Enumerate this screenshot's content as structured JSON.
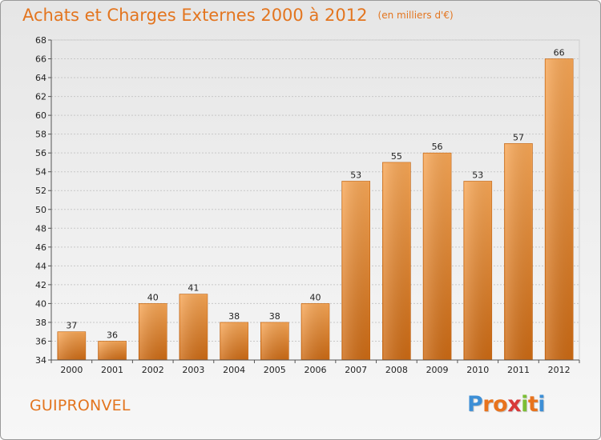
{
  "chart_data": {
    "type": "bar",
    "title": "Achats et Charges Externes 2000 à 2012",
    "subtitle": "(en milliers d'€)",
    "categories": [
      "2000",
      "2001",
      "2002",
      "2003",
      "2004",
      "2005",
      "2006",
      "2007",
      "2008",
      "2009",
      "2010",
      "2011",
      "2012"
    ],
    "values": [
      37,
      36,
      40,
      41,
      38,
      38,
      40,
      53,
      55,
      56,
      53,
      57,
      66
    ],
    "ylim": [
      34,
      68
    ],
    "yticks": [
      34,
      36,
      38,
      40,
      42,
      44,
      46,
      48,
      50,
      52,
      54,
      56,
      58,
      60,
      62,
      64,
      66,
      68
    ],
    "grid": true,
    "bar_color_top": "#f7a757",
    "bar_color_bottom": "#cc6a14"
  },
  "footer": {
    "commune": "GUIPRONVEL",
    "logo": {
      "letters": [
        "P",
        "r",
        "o",
        "x",
        "i",
        "t",
        "i"
      ],
      "colors": [
        "#3d8fd6",
        "#e8731d",
        "#e8731d",
        "#d83a3a",
        "#7cbf35",
        "#e8731d",
        "#3d8fd6"
      ]
    }
  }
}
